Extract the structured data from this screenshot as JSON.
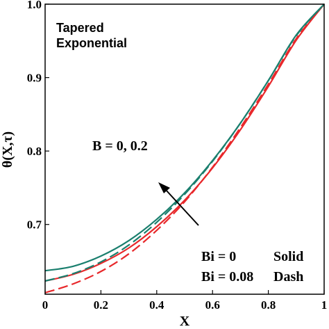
{
  "chart_data": {
    "type": "line",
    "xlabel": "X",
    "ylabel": "θ(X,τ)",
    "xlim": [
      0,
      1
    ],
    "ylim": [
      0.605,
      1.0
    ],
    "xticks": [
      "0",
      "0.2",
      "0.4",
      "0.6",
      "0.8",
      "1"
    ],
    "yticks": [
      "0.7",
      "0.8",
      "0.9",
      "1.0"
    ],
    "annotations": {
      "case_line1": "Tapered",
      "case_line2": "Exponential",
      "param": "B = 0, 0.2",
      "legend_bi0": "Bi = 0",
      "legend_bi0_style": "Solid",
      "legend_bi008": "Bi = 0.08",
      "legend_bi008_style": "Dash"
    },
    "colors": {
      "red": "#e8282b",
      "teal": "#1a7f6e"
    },
    "series": [
      {
        "color": "red",
        "style": "solid",
        "x": [
          0,
          0.1,
          0.2,
          0.3,
          0.4,
          0.5,
          0.6,
          0.7,
          0.8,
          0.9,
          1.0
        ],
        "y": [
          0.623,
          0.632,
          0.647,
          0.668,
          0.697,
          0.733,
          0.777,
          0.829,
          0.888,
          0.951,
          1.0
        ]
      },
      {
        "color": "red",
        "style": "dash",
        "x": [
          0,
          0.1,
          0.2,
          0.3,
          0.4,
          0.5,
          0.6,
          0.7,
          0.8,
          0.9,
          1.0
        ],
        "y": [
          0.607,
          0.619,
          0.636,
          0.66,
          0.692,
          0.731,
          0.778,
          0.832,
          0.891,
          0.953,
          1.0
        ]
      },
      {
        "color": "teal",
        "style": "solid",
        "x": [
          0,
          0.1,
          0.2,
          0.3,
          0.4,
          0.5,
          0.6,
          0.7,
          0.8,
          0.9,
          1.0
        ],
        "y": [
          0.637,
          0.643,
          0.657,
          0.678,
          0.707,
          0.743,
          0.787,
          0.838,
          0.896,
          0.958,
          1.0
        ]
      },
      {
        "color": "teal",
        "style": "dash",
        "x": [
          0,
          0.1,
          0.2,
          0.3,
          0.4,
          0.5,
          0.6,
          0.7,
          0.8,
          0.9,
          1.0
        ],
        "y": [
          0.623,
          0.633,
          0.649,
          0.672,
          0.703,
          0.741,
          0.786,
          0.838,
          0.896,
          0.957,
          1.0
        ]
      }
    ]
  }
}
